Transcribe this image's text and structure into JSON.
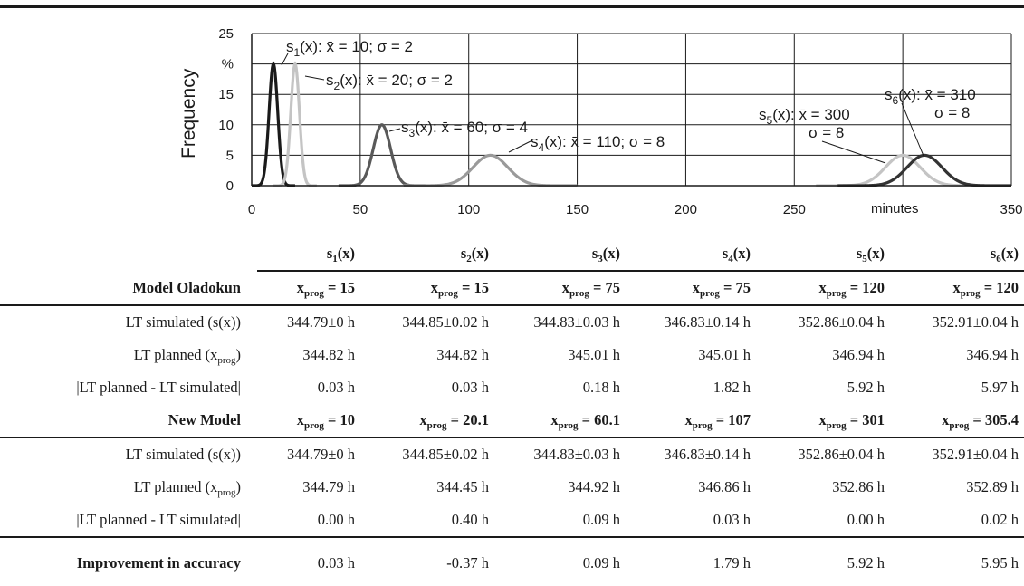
{
  "chart_data": {
    "type": "line",
    "ylabel": "Frequency",
    "yunit": "%",
    "xunit": "minutes",
    "xlim": [
      0,
      350
    ],
    "ylim": [
      0,
      25
    ],
    "xticks": [
      "0",
      "50",
      "100",
      "150",
      "200",
      "250",
      "350"
    ],
    "yticks": [
      "25",
      "%",
      "15",
      "10",
      "5",
      "0"
    ],
    "grid": true,
    "series": [
      {
        "name": "s1(x): x̄ = 10; σ = 2",
        "mean": 10,
        "sigma": 2,
        "peak": 20,
        "color": "#1a1a1a"
      },
      {
        "name": "s2(x): x̄ = 20; σ = 2",
        "mean": 20,
        "sigma": 2,
        "peak": 20,
        "color": "#c4c4c4"
      },
      {
        "name": "s3(x): x̄ = 60; σ = 4",
        "mean": 60,
        "sigma": 4,
        "peak": 10,
        "color": "#595959"
      },
      {
        "name": "s4(x): x̄ = 110; σ = 8",
        "mean": 110,
        "sigma": 8,
        "peak": 5,
        "color": "#9a9a9a"
      },
      {
        "name": "s5(x): x̄ = 300 σ = 8",
        "mean": 300,
        "sigma": 8,
        "peak": 5,
        "color": "#c4c4c4"
      },
      {
        "name": "s6(x): x̄ = 310 σ = 8",
        "mean": 310,
        "sigma": 8,
        "peak": 5,
        "color": "#333333"
      }
    ],
    "annotations": {
      "s1": {
        "p": "s",
        "sub": "1",
        "rest": "(x): x̄ = 10; σ = 2"
      },
      "s2": {
        "p": "s",
        "sub": "2",
        "rest": "(x): x̄ = 20; σ = 2"
      },
      "s3": {
        "p": "s",
        "sub": "3",
        "rest": "(x): x̄ = 60; σ = 4"
      },
      "s4": {
        "p": "s",
        "sub": "4",
        "rest": "(x): x̄ = 110; σ = 8"
      },
      "s5": {
        "p": "s",
        "sub": "5",
        "rest": "(x): x̄ = 300",
        "line2": "σ = 8"
      },
      "s6": {
        "p": "s",
        "sub": "6",
        "rest": "(x): x̄ = 310",
        "line2": "σ = 8"
      }
    }
  },
  "table": {
    "columns": [
      "s1(x)",
      "s2(x)",
      "s3(x)",
      "s4(x)",
      "s5(x)",
      "s6(x)"
    ],
    "col_base": "s",
    "col_subs": [
      "1",
      "2",
      "3",
      "4",
      "5",
      "6"
    ],
    "col_suffix": "(x)",
    "xprog_base": "x",
    "xprog_sub": "prog",
    "sections": [
      {
        "title": "Model Oladokun",
        "xprog": [
          "= 15",
          "= 15",
          "= 75",
          "= 75",
          "= 120",
          "= 120"
        ],
        "rows": [
          {
            "label": "LT simulated (s(x))",
            "values": [
              "344.79±0 h",
              "344.85±0.02 h",
              "344.83±0.03 h",
              "346.83±0.14 h",
              "352.86±0.04 h",
              "352.91±0.04 h"
            ]
          },
          {
            "label": "LT planned (x",
            "label_sub": "prog",
            "label_end": ")",
            "values": [
              "344.82 h",
              "344.82 h",
              "345.01 h",
              "345.01 h",
              "346.94 h",
              "346.94 h"
            ]
          },
          {
            "label": "|LT planned - LT simulated|",
            "values": [
              "0.03 h",
              "0.03 h",
              "0.18 h",
              "1.82 h",
              "5.92 h",
              "5.97 h"
            ]
          }
        ]
      },
      {
        "title": "New Model",
        "xprog": [
          "= 10",
          "= 20.1",
          "= 60.1",
          "= 107",
          "= 301",
          "= 305.4"
        ],
        "rows": [
          {
            "label": "LT simulated (s(x))",
            "values": [
              "344.79±0 h",
              "344.85±0.02 h",
              "344.83±0.03 h",
              "346.83±0.14 h",
              "352.86±0.04 h",
              "352.91±0.04 h"
            ]
          },
          {
            "label": "LT planned (x",
            "label_sub": "prog",
            "label_end": ")",
            "values": [
              "344.79 h",
              "344.45 h",
              "344.92 h",
              "346.86 h",
              "352.86 h",
              "352.89 h"
            ]
          },
          {
            "label": "|LT planned - LT simulated|",
            "values": [
              "0.00 h",
              "0.40 h",
              "0.09 h",
              "0.03 h",
              "0.00 h",
              "0.02 h"
            ]
          }
        ]
      }
    ],
    "improvement": {
      "label": "Improvement in accuracy",
      "values": [
        "0.03 h",
        "-0.37 h",
        "0.09 h",
        "1.79 h",
        "5.92 h",
        "5.95 h"
      ]
    }
  }
}
